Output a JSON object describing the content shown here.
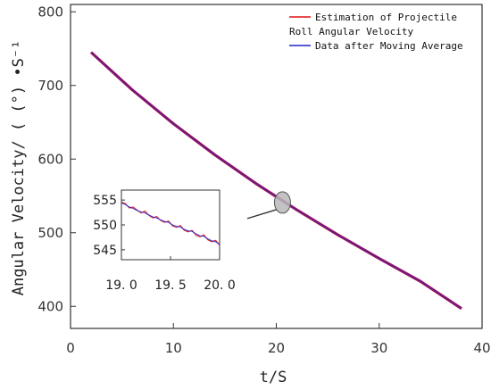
{
  "colors": {
    "estimate": "#e01010",
    "moving_average": "#2222cc",
    "overlap": "#b0124a",
    "magnifier": "#b8b8b8"
  },
  "chart_data": [
    {
      "type": "line",
      "xlabel": "t/S",
      "ylabel": "Angular Velocity/ ( (°) •S⁻¹",
      "xlim": [
        0,
        40
      ],
      "ylim": [
        370,
        810
      ],
      "xticks": [
        "0",
        "10",
        "20",
        "30",
        "40"
      ],
      "yticks": [
        "400",
        "500",
        "600",
        "700",
        "800"
      ],
      "grid": false,
      "legend_position": "top-right",
      "legend": [
        "Estimation of Projectile",
        "Roll Angular Velocity",
        "Data after Moving Average"
      ],
      "series": [
        {
          "name": "Estimation of Projectile Roll Angular Velocity",
          "x": [
            2,
            6,
            10,
            14,
            18,
            22,
            26,
            30,
            34,
            38
          ],
          "y": [
            745,
            694,
            648,
            606,
            567,
            531,
            497,
            465,
            434,
            397
          ]
        },
        {
          "name": "Data after Moving Average",
          "x": [
            2,
            6,
            10,
            14,
            18,
            22,
            26,
            30,
            34,
            38
          ],
          "y": [
            745,
            694,
            648,
            606,
            567,
            531,
            497,
            465,
            434,
            397
          ]
        }
      ],
      "highlight_point": {
        "x": 20.6,
        "y": 541
      }
    },
    {
      "type": "line",
      "role": "inset",
      "xlim": [
        19.0,
        20.0
      ],
      "ylim": [
        543,
        557
      ],
      "xticks": [
        "19. 0",
        "19. 5",
        "20. 0"
      ],
      "yticks": [
        "545",
        "550",
        "555"
      ],
      "series": [
        {
          "name": "Estimation of Projectile Roll Angular Velocity",
          "x": [
            19.0,
            19.04,
            19.08,
            19.12,
            19.16,
            19.2,
            19.24,
            19.28,
            19.32,
            19.36,
            19.4,
            19.44,
            19.48,
            19.52,
            19.56,
            19.6,
            19.64,
            19.68,
            19.72,
            19.76,
            19.8,
            19.84,
            19.88,
            19.92,
            19.96,
            20.0
          ],
          "y": [
            554.6,
            554.3,
            553.4,
            553.6,
            553.0,
            552.4,
            552.8,
            551.9,
            551.4,
            551.7,
            550.9,
            550.5,
            550.8,
            549.8,
            549.5,
            549.9,
            548.9,
            548.6,
            548.9,
            547.9,
            547.6,
            548.0,
            547.0,
            546.6,
            546.9,
            545.9
          ]
        },
        {
          "name": "Data after Moving Average",
          "x": [
            19.0,
            19.04,
            19.08,
            19.12,
            19.16,
            19.2,
            19.24,
            19.28,
            19.32,
            19.36,
            19.4,
            19.44,
            19.48,
            19.52,
            19.56,
            19.6,
            19.64,
            19.68,
            19.72,
            19.76,
            19.8,
            19.84,
            19.88,
            19.92,
            19.96,
            20.0
          ],
          "y": [
            554.4,
            554.1,
            553.6,
            553.3,
            552.9,
            552.6,
            552.4,
            552.0,
            551.6,
            551.4,
            551.0,
            550.7,
            550.5,
            550.0,
            549.7,
            549.6,
            549.1,
            548.8,
            548.7,
            548.2,
            547.8,
            547.7,
            547.2,
            546.8,
            546.6,
            546.1
          ]
        }
      ]
    }
  ]
}
